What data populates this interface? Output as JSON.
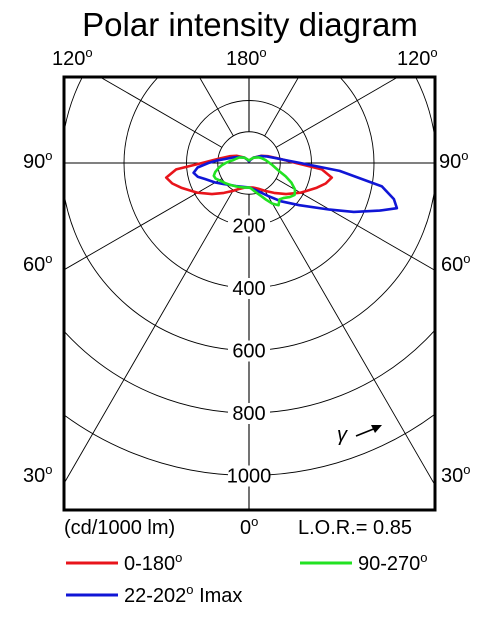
{
  "chart_data": {
    "type": "polar",
    "title": "Polar intensity diagram",
    "angle_labels": {
      "top_left": "120",
      "top_center": "180",
      "top_right": "120",
      "left_90": "90",
      "right_90": "90",
      "left_60": "60",
      "right_60": "60",
      "left_30": "30",
      "right_30": "30",
      "bottom_center": "0",
      "degree_symbol": "o"
    },
    "radial_ticks": [
      "200",
      "400",
      "600",
      "800",
      "1000"
    ],
    "radial_values": [
      200,
      400,
      600,
      800,
      1000
    ],
    "rmax": 1000,
    "unit_label": "(cd/1000 lm)",
    "lor_label": "L.O.R.= 0.85",
    "gamma_label": "γ",
    "series": [
      {
        "name": "0-180",
        "color": "#e8141b",
        "points_deg_cd": [
          [
            0,
            78
          ],
          [
            10,
            80
          ],
          [
            20,
            88
          ],
          [
            30,
            103
          ],
          [
            40,
            125
          ],
          [
            50,
            155
          ],
          [
            60,
            190
          ],
          [
            65,
            208
          ],
          [
            70,
            231
          ],
          [
            75,
            254
          ],
          [
            80,
            269
          ],
          [
            85,
            234
          ],
          [
            90,
            150
          ],
          [
            95,
            112
          ],
          [
            100,
            90
          ],
          [
            110,
            64
          ],
          [
            120,
            46
          ],
          [
            140,
            22
          ],
          [
            160,
            10
          ],
          [
            180,
            5
          ],
          [
            -160,
            10
          ],
          [
            -140,
            22
          ],
          [
            -120,
            46
          ],
          [
            -110,
            64
          ],
          [
            -100,
            90
          ],
          [
            -95,
            112
          ],
          [
            -90,
            150
          ],
          [
            -85,
            234
          ],
          [
            -80,
            269
          ],
          [
            -75,
            254
          ],
          [
            -70,
            231
          ],
          [
            -65,
            208
          ],
          [
            -60,
            190
          ],
          [
            -50,
            155
          ],
          [
            -40,
            125
          ],
          [
            -30,
            103
          ],
          [
            -20,
            88
          ],
          [
            -10,
            80
          ],
          [
            0,
            78
          ]
        ]
      },
      {
        "name": "22-202",
        "suffix": " Imax",
        "color": "#1016d6",
        "points_deg_cd": [
          [
            0,
            78
          ],
          [
            10,
            85
          ],
          [
            20,
            98
          ],
          [
            30,
            122
          ],
          [
            40,
            160
          ],
          [
            50,
            210
          ],
          [
            60,
            298
          ],
          [
            65,
            370
          ],
          [
            70,
            445
          ],
          [
            73,
            495
          ],
          [
            76,
            478
          ],
          [
            80,
            432
          ],
          [
            85,
            291
          ],
          [
            90,
            164
          ],
          [
            95,
            113
          ],
          [
            100,
            88
          ],
          [
            110,
            61
          ],
          [
            120,
            44
          ],
          [
            140,
            22
          ],
          [
            160,
            10
          ],
          [
            180,
            5
          ],
          [
            -160,
            10
          ],
          [
            -140,
            22
          ],
          [
            -120,
            38
          ],
          [
            -110,
            52
          ],
          [
            -100,
            75
          ],
          [
            -95,
            100
          ],
          [
            -90,
            130
          ],
          [
            -85,
            165
          ],
          [
            -80,
            180
          ],
          [
            -75,
            170
          ],
          [
            -70,
            150
          ],
          [
            -60,
            125
          ],
          [
            -50,
            105
          ],
          [
            -40,
            92
          ],
          [
            -30,
            85
          ],
          [
            -20,
            80
          ],
          [
            -10,
            78
          ],
          [
            0,
            78
          ]
        ]
      },
      {
        "name": "90-270",
        "color": "#22e222",
        "points_deg_cd": [
          [
            0,
            78
          ],
          [
            5,
            82
          ],
          [
            10,
            90
          ],
          [
            15,
            100
          ],
          [
            20,
            112
          ],
          [
            25,
            130
          ],
          [
            30,
            150
          ],
          [
            35,
            165
          ],
          [
            40,
            152
          ],
          [
            45,
            158
          ],
          [
            50,
            170
          ],
          [
            55,
            178
          ],
          [
            60,
            170
          ],
          [
            65,
            150
          ],
          [
            70,
            125
          ],
          [
            75,
            100
          ],
          [
            80,
            85
          ],
          [
            85,
            75
          ],
          [
            90,
            66
          ],
          [
            100,
            54
          ],
          [
            110,
            44
          ],
          [
            120,
            36
          ],
          [
            140,
            22
          ],
          [
            160,
            12
          ],
          [
            180,
            8
          ],
          [
            -160,
            12
          ],
          [
            -140,
            22
          ],
          [
            -120,
            36
          ],
          [
            -110,
            42
          ],
          [
            -100,
            52
          ],
          [
            -95,
            63
          ],
          [
            -90,
            75
          ],
          [
            -85,
            88
          ],
          [
            -80,
            100
          ],
          [
            -75,
            112
          ],
          [
            -70,
            120
          ],
          [
            -65,
            118
          ],
          [
            -60,
            110
          ],
          [
            -50,
            100
          ],
          [
            -40,
            92
          ],
          [
            -30,
            86
          ],
          [
            -20,
            82
          ],
          [
            -10,
            80
          ],
          [
            0,
            78
          ]
        ]
      }
    ]
  }
}
